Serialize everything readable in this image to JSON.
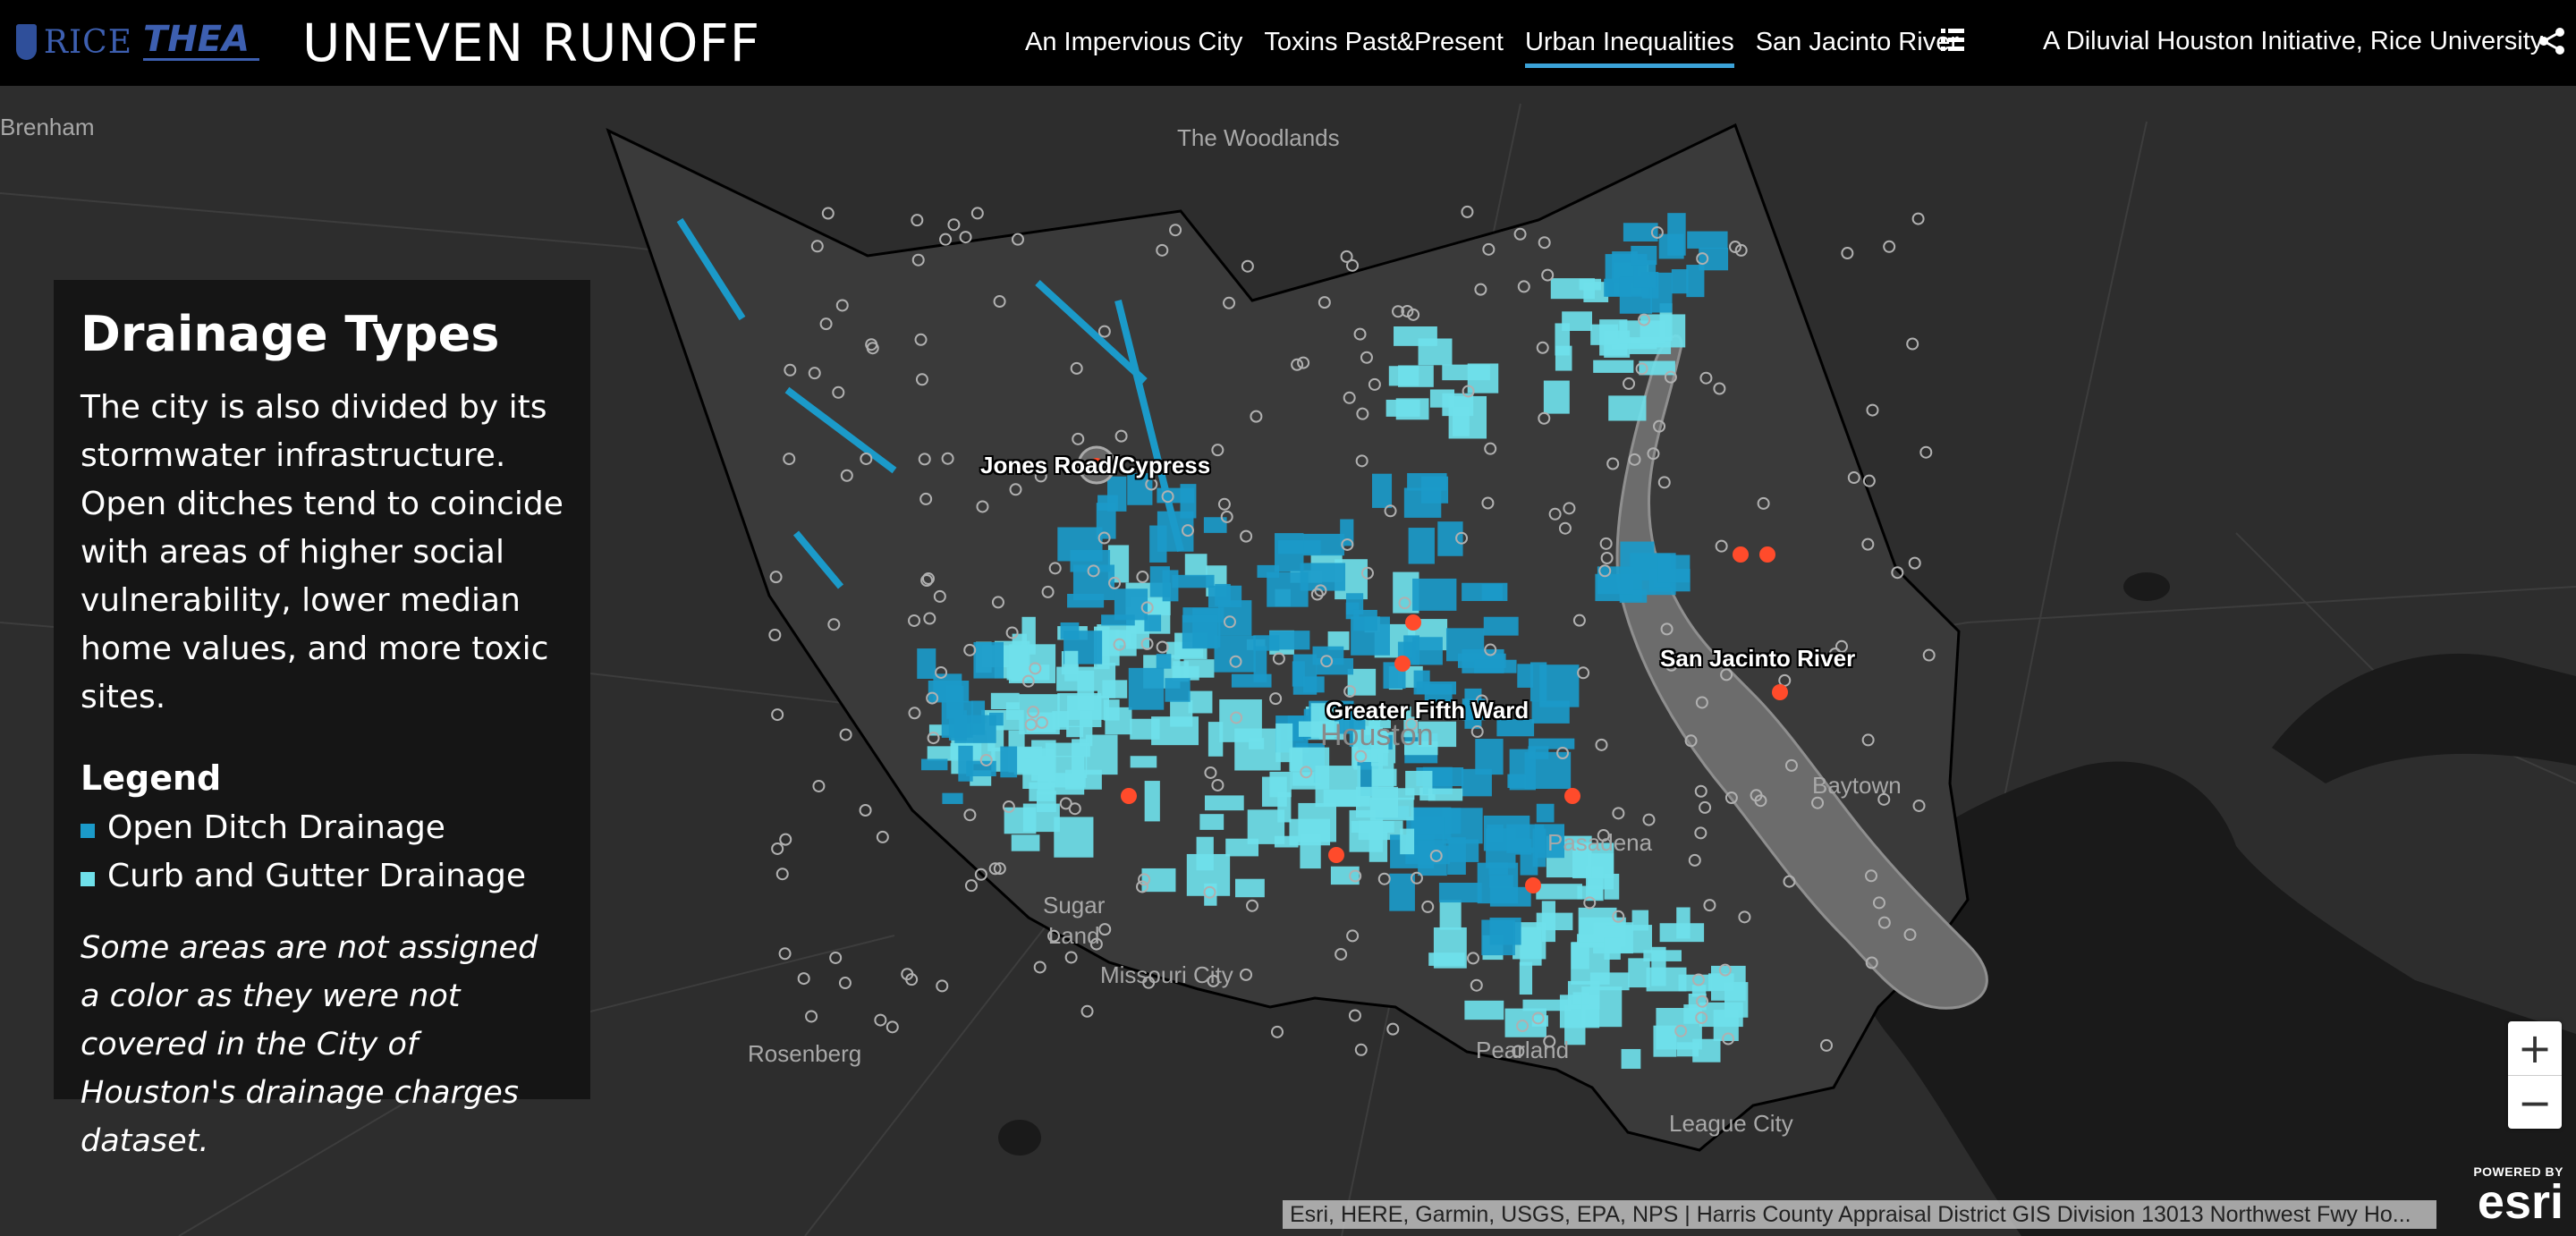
{
  "header": {
    "logos": [
      "RICE",
      "THEA"
    ],
    "title": "UNEVEN RUNOFF",
    "nav": [
      {
        "label": "An Impervious City",
        "active": false
      },
      {
        "label": "Toxins Past&Present",
        "active": false
      },
      {
        "label": "Urban Inequalities",
        "active": true
      },
      {
        "label": "San Jacinto River",
        "active": false
      }
    ],
    "list_icon": "list-icon",
    "tagline": "A Diluvial Houston Initiative, Rice University",
    "share_icon": "share-icon",
    "accent_color": "#3ba2d8"
  },
  "panel": {
    "title": "Drainage Types",
    "description": "The city is also divided by its stormwater infrastructure. Open ditches tend to coincide with areas of higher social vulnerability, lower median home values, and more toxic sites.",
    "legend_title": "Legend",
    "legend": [
      {
        "label": "Open Ditch Drainage",
        "color": "#1b9ac9"
      },
      {
        "label": "Curb and Gutter Drainage",
        "color": "#6fe0ea"
      }
    ],
    "note": "Some areas are not assigned a color as they were not covered in the City of Houston's drainage charges dataset."
  },
  "map": {
    "places": {
      "brenham": "Brenham",
      "woodlands": "The Woodlands",
      "houston": "Houston",
      "sugar_land": "Sugar\nLand",
      "missouri_city": "Missouri City",
      "rosenberg": "Rosenberg",
      "pearland": "Pearland",
      "pasadena": "Pasadena",
      "baytown": "Baytown",
      "league_city": "League City"
    },
    "highlights": {
      "jones_road": "Jones Road/Cypress",
      "fifth_ward": "Greater Fifth Ward",
      "san_jacinto": "San Jacinto River"
    },
    "colors": {
      "open_ditch": "#1b9ac9",
      "curb_gutter": "#6fe0ea",
      "toxic_site": "#ff4b2b"
    }
  },
  "zoom": {
    "in": "+",
    "out": "−"
  },
  "attribution": "Esri, HERE, Garmin, USGS, EPA, NPS | Harris County Appraisal District GIS Division 13013 Northwest Fwy Ho...",
  "esri": {
    "powered": "POWERED BY",
    "brand": "esri"
  }
}
